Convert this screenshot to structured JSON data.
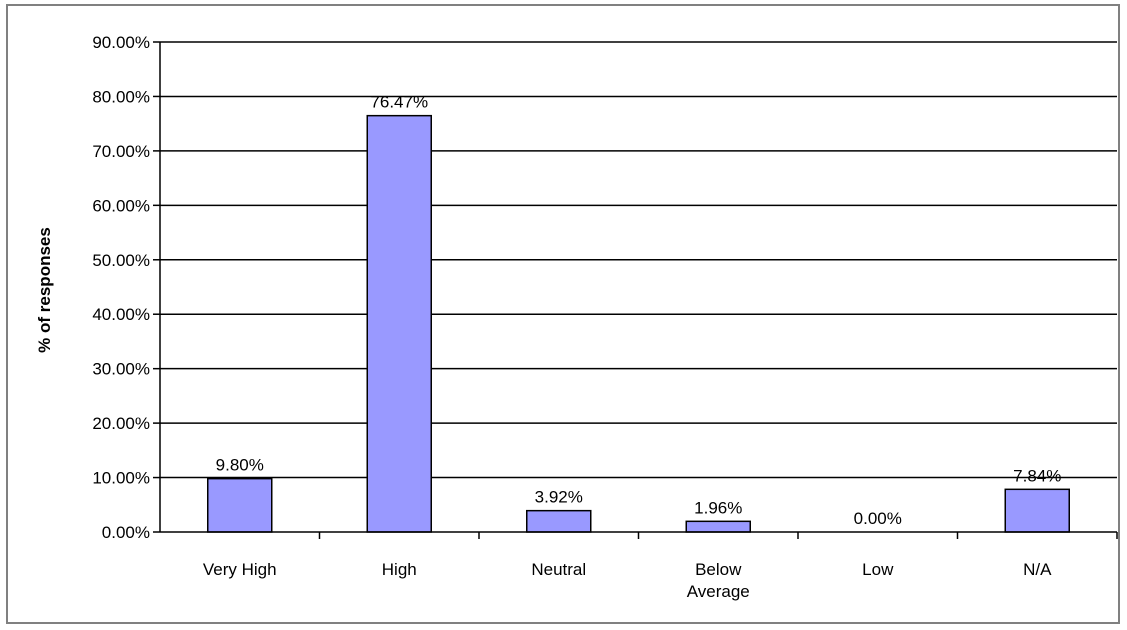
{
  "chart_data": {
    "type": "bar",
    "title": "",
    "xlabel": "",
    "ylabel": "% of responses",
    "categories": [
      "Very High",
      "High",
      "Neutral",
      "Below Average",
      "Low",
      "N/A"
    ],
    "category_label_lines": [
      [
        "Very High"
      ],
      [
        "High"
      ],
      [
        "Neutral"
      ],
      [
        "Below",
        "Average"
      ],
      [
        "Low"
      ],
      [
        "N/A"
      ]
    ],
    "values": [
      9.8,
      76.47,
      3.92,
      1.96,
      0.0,
      7.84
    ],
    "data_labels": [
      "9.80%",
      "76.47%",
      "3.92%",
      "1.96%",
      "0.00%",
      "7.84%"
    ],
    "ylim": [
      0,
      90
    ],
    "yticks": [
      0,
      10,
      20,
      30,
      40,
      50,
      60,
      70,
      80,
      90
    ],
    "ytick_labels": [
      "0.00%",
      "10.00%",
      "20.00%",
      "30.00%",
      "40.00%",
      "50.00%",
      "60.00%",
      "70.00%",
      "80.00%",
      "90.00%"
    ],
    "grid": true,
    "legend": "none",
    "colors": {
      "bar_fill": "#9999ff",
      "bar_stroke": "#000000",
      "grid": "#000000",
      "axis": "#000000"
    }
  }
}
